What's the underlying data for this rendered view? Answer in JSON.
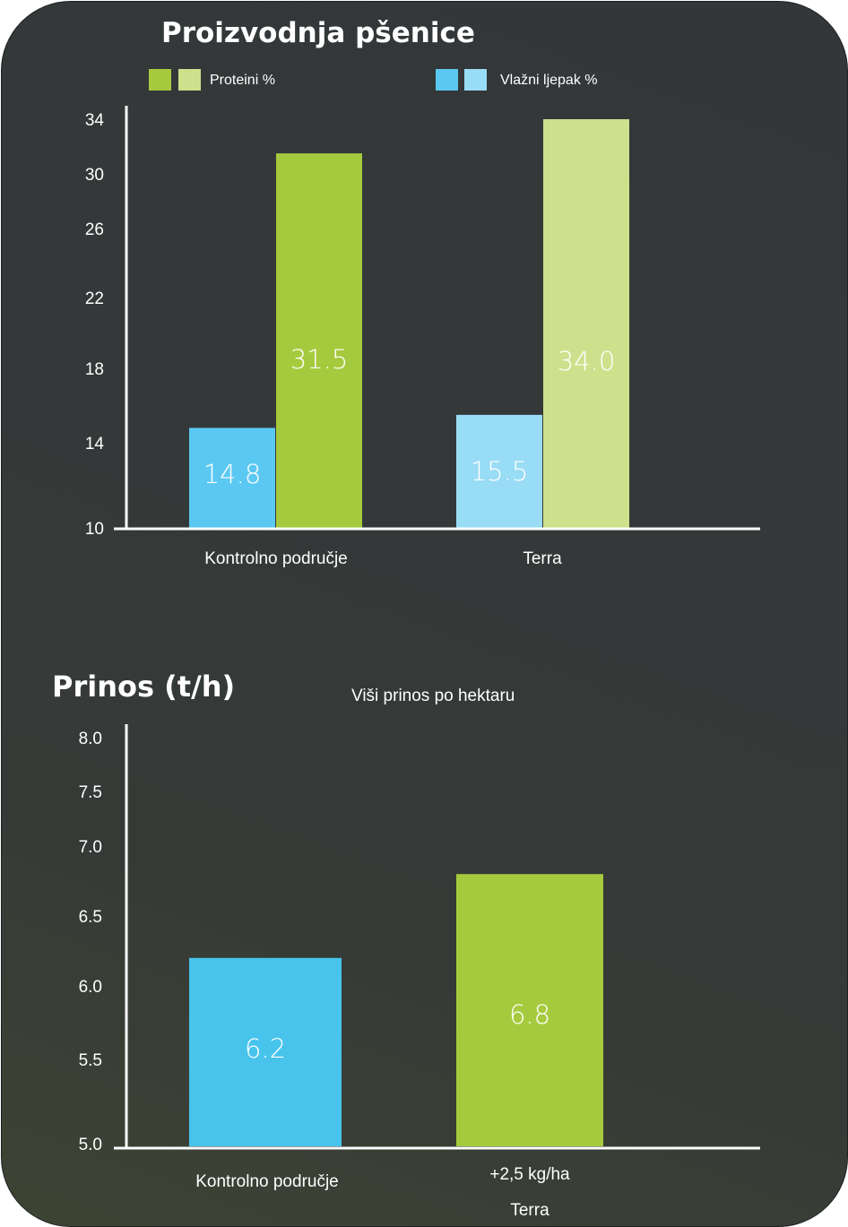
{
  "colors": {
    "protein_control": "#a6ca3d",
    "protein_terra": "#cde08b",
    "gluten_control": "#5bc8f2",
    "gluten_terra": "#99dcf5",
    "yield_control": "#48c4ec",
    "yield_terra": "#a6ca3d"
  },
  "chart_data": [
    {
      "type": "bar",
      "title": "Proizvodnja pšenice",
      "categories": [
        "Kontrolno područje",
        "Terra"
      ],
      "series": [
        {
          "name": "Vlažni ljepak %",
          "values": [
            14.8,
            15.5
          ],
          "labels": [
            "14.8",
            "15.5"
          ]
        },
        {
          "name": "Proteini %",
          "values": [
            31.5,
            34.0
          ],
          "labels": [
            "31.5",
            "34.0"
          ]
        }
      ],
      "legend": [
        "Proteini %",
        "Vlažni ljepak %"
      ],
      "legend_position": "top",
      "yticks": [
        "10",
        "14",
        "18",
        "22",
        "26",
        "30",
        "34"
      ],
      "ylim": [
        10,
        34
      ],
      "xlabel": "",
      "ylabel": "",
      "grid": false
    },
    {
      "type": "bar",
      "title": "Prinos (t/h)",
      "subtitle": "Viši prinos po hektaru",
      "categories": [
        "Kontrolno područje",
        "Terra"
      ],
      "category_notes": [
        "",
        "+2,5 kg/ha"
      ],
      "values": [
        6.2,
        6.8
      ],
      "labels": [
        "6.2",
        "6.8"
      ],
      "yticks": [
        "5.0",
        "5.5",
        "6.0",
        "6.5",
        "7.0",
        "7.5",
        "8.0"
      ],
      "ylim": [
        5.0,
        8.0
      ],
      "xlabel": "",
      "ylabel": "",
      "grid": false
    }
  ]
}
